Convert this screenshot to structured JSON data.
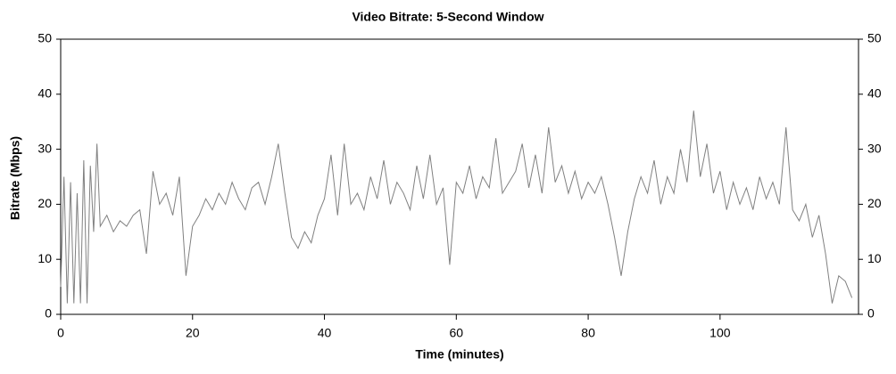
{
  "chart_data": {
    "type": "line",
    "title": "Video Bitrate: 5-Second Window",
    "x_label": "Time (minutes)",
    "y_label": "Bitrate (Mbps)",
    "color": "#808080",
    "x": [
      0,
      0.5,
      1,
      1.5,
      2,
      2.5,
      3,
      3.5,
      4,
      4.5,
      5,
      5.5,
      6,
      7,
      8,
      9,
      10,
      11,
      12,
      13,
      14,
      15,
      16,
      17,
      18,
      19,
      20,
      21,
      22,
      23,
      24,
      25,
      26,
      27,
      28,
      29,
      30,
      31,
      32,
      33,
      34,
      35,
      36,
      37,
      38,
      39,
      40,
      41,
      42,
      43,
      44,
      45,
      46,
      47,
      48,
      49,
      50,
      51,
      52,
      53,
      54,
      55,
      56,
      57,
      58,
      59,
      60,
      61,
      62,
      63,
      64,
      65,
      66,
      67,
      68,
      69,
      70,
      71,
      72,
      73,
      74,
      75,
      76,
      77,
      78,
      79,
      80,
      81,
      82,
      83,
      84,
      85,
      86,
      87,
      88,
      89,
      90,
      91,
      92,
      93,
      94,
      95,
      96,
      97,
      98,
      99,
      100,
      101,
      102,
      103,
      104,
      105,
      106,
      107,
      108,
      109,
      110,
      111,
      112,
      113,
      114,
      115,
      116,
      117,
      118,
      119,
      120
    ],
    "values": [
      5,
      25,
      2,
      24,
      2,
      22,
      2,
      28,
      2,
      27,
      15,
      31,
      16,
      18,
      15,
      17,
      16,
      18,
      19,
      11,
      26,
      20,
      22,
      18,
      25,
      7,
      16,
      18,
      21,
      19,
      22,
      20,
      24,
      21,
      19,
      23,
      24,
      20,
      25,
      31,
      22,
      14,
      12,
      15,
      13,
      18,
      21,
      29,
      18,
      31,
      20,
      22,
      19,
      25,
      21,
      28,
      20,
      24,
      22,
      19,
      27,
      21,
      29,
      20,
      23,
      9,
      24,
      22,
      27,
      21,
      25,
      23,
      32,
      22,
      24,
      26,
      31,
      23,
      29,
      22,
      34,
      24,
      27,
      22,
      26,
      21,
      24,
      22,
      25,
      20,
      14,
      7,
      15,
      21,
      25,
      22,
      28,
      20,
      25,
      22,
      30,
      24,
      37,
      25,
      31,
      22,
      26,
      19,
      24,
      20,
      23,
      19,
      25,
      21,
      24,
      20,
      34,
      19,
      17,
      20,
      14,
      18,
      11,
      2,
      7,
      6,
      3
    ],
    "xlim": [
      0,
      121
    ],
    "xticks": [
      0,
      20,
      40,
      60,
      80,
      100
    ],
    "ylim": [
      0,
      50
    ],
    "yticks": [
      0,
      10,
      20,
      30,
      40,
      50
    ]
  }
}
